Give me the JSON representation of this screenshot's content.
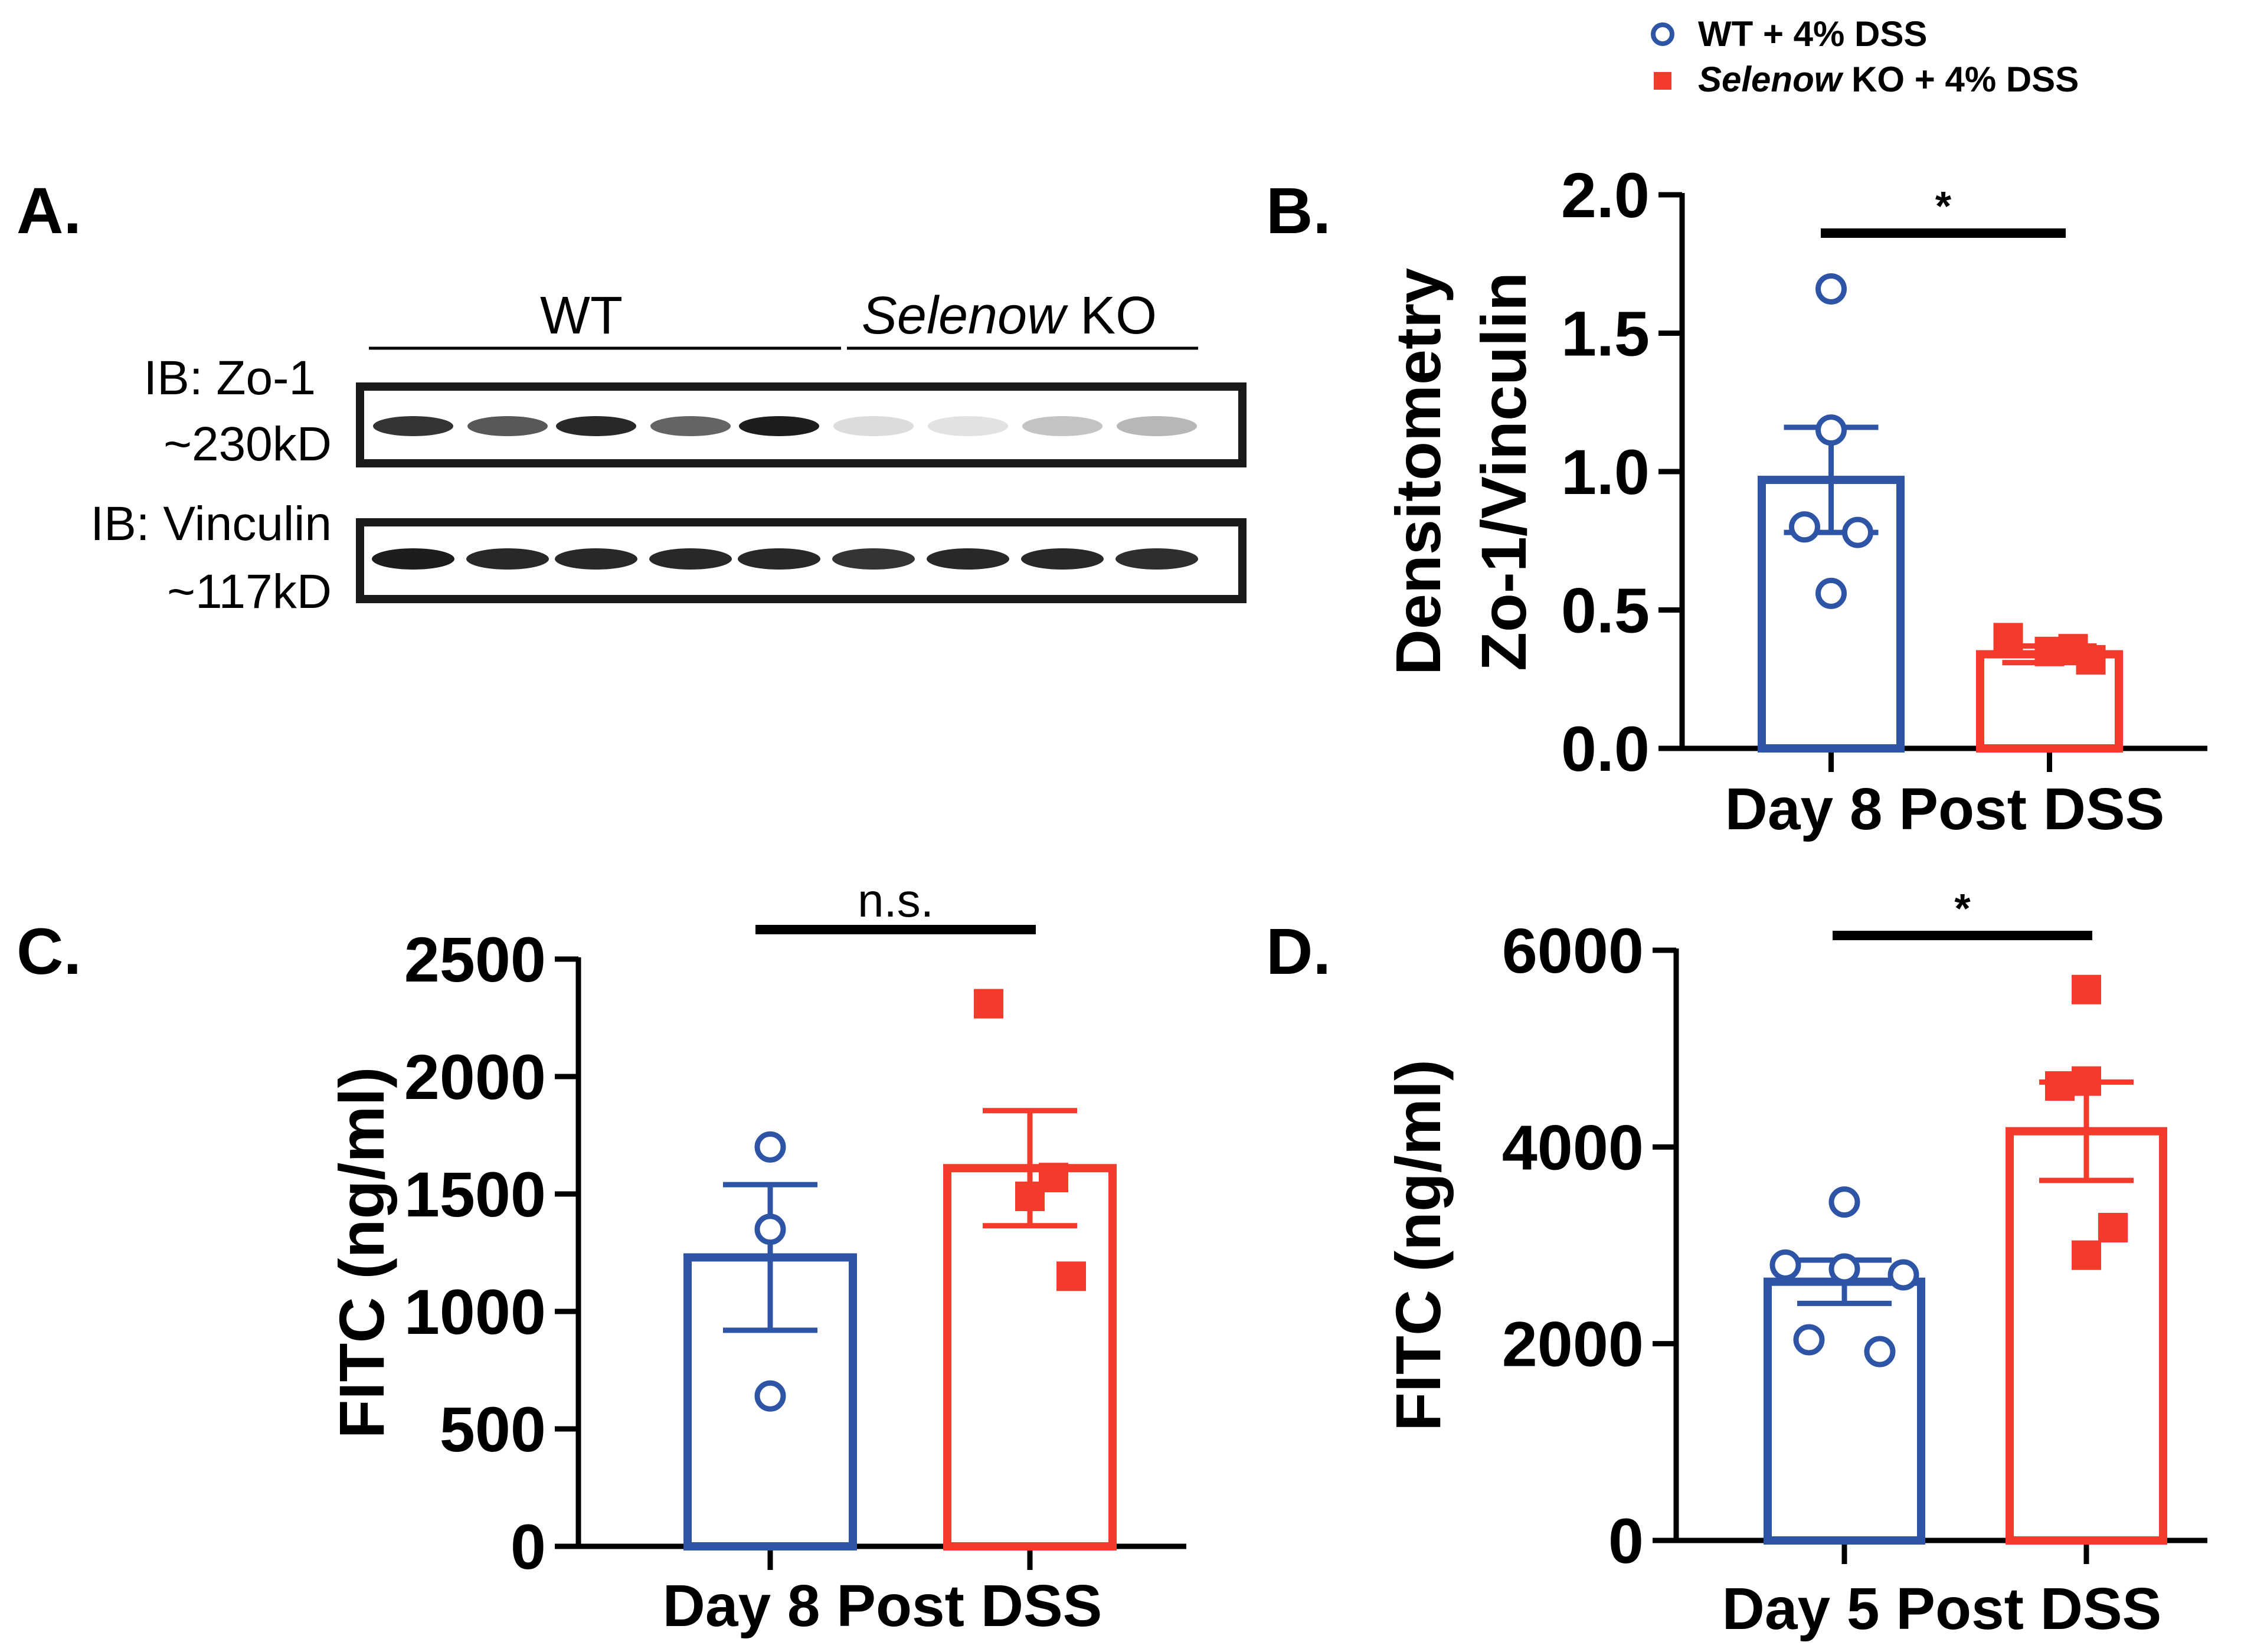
{
  "legend": {
    "items": [
      {
        "label_main": "WT + 4% DSS",
        "label_italic": "",
        "color": "#2E55A5",
        "marker": "open-circle"
      },
      {
        "label_main": " KO + 4% DSS",
        "label_italic": "Selenow",
        "color": "#F43A2A",
        "marker": "filled-square"
      }
    ],
    "position": "top-right"
  },
  "blot": {
    "panel_label": "A.",
    "group_wt": "WT",
    "group_ko_italic": "Selenow",
    "group_ko_rest": " KO",
    "zo1_label": "IB: Zo-1",
    "zo1_kd": "~230kD",
    "vinc_label": "IB: Vinculin",
    "vinc_kd": "~117kD",
    "lanes_wt": 5,
    "lanes_ko": 4
  },
  "chart_data": [
    {
      "panel": "B.",
      "type": "bar",
      "title": "",
      "xlabel": "Day 8 Post DSS",
      "ylabel_line1": "Densitometry",
      "ylabel_line2": "Zo-1/Vinculin",
      "ylim": [
        0,
        2.0
      ],
      "yticks": [
        0.0,
        0.5,
        1.0,
        1.5,
        2.0
      ],
      "ytick_labels": [
        "0.0",
        "0.5",
        "1.0",
        "1.5",
        "2.0"
      ],
      "series": [
        {
          "name": "WT + 4% DSS",
          "mean": 0.97,
          "sem": 0.19,
          "points": [
            1.66,
            1.15,
            0.8,
            0.78,
            0.56
          ],
          "color": "#2E55A5",
          "marker": "open-circle"
        },
        {
          "name": "Selenow KO + 4% DSS",
          "mean": 0.34,
          "sem": 0.03,
          "points": [
            0.4,
            0.36,
            0.35,
            0.32
          ],
          "color": "#F43A2A",
          "marker": "filled-square"
        }
      ],
      "significance": "*"
    },
    {
      "panel": "C.",
      "type": "bar",
      "title": "",
      "xlabel": "Day 8 Post DSS",
      "ylabel_line1": "FITC  (ng/ml)",
      "ylabel_line2": "",
      "ylim": [
        0,
        2500
      ],
      "yticks": [
        0,
        500,
        1000,
        1500,
        2000,
        2500
      ],
      "ytick_labels": [
        "0",
        "500",
        "1000",
        "1500",
        "2000",
        "2500"
      ],
      "series": [
        {
          "name": "WT + 4% DSS",
          "mean": 1230,
          "sem": 310,
          "points": [
            1700,
            1350,
            640
          ],
          "color": "#2E55A5",
          "marker": "open-circle"
        },
        {
          "name": "Selenow KO + 4% DSS",
          "mean": 1610,
          "sem": 245,
          "points": [
            2310,
            1570,
            1490,
            1150
          ],
          "color": "#F43A2A",
          "marker": "filled-square"
        }
      ],
      "significance": "n.s."
    },
    {
      "panel": "D.",
      "type": "bar",
      "title": "",
      "xlabel": "Day 5 Post DSS",
      "ylabel_line1": "FITC  (ng/ml)",
      "ylabel_line2": "",
      "ylim": [
        0,
        6000
      ],
      "yticks": [
        0,
        2000,
        4000,
        6000
      ],
      "ytick_labels": [
        "0",
        "2000",
        "4000",
        "6000"
      ],
      "series": [
        {
          "name": "WT + 4% DSS",
          "mean": 2630,
          "sem": 220,
          "points": [
            3440,
            2800,
            2700,
            2760,
            2040,
            1920
          ],
          "color": "#2E55A5",
          "marker": "open-circle"
        },
        {
          "name": "Selenow KO + 4% DSS",
          "mean": 4160,
          "sem": 500,
          "points": [
            5600,
            4670,
            4620,
            3180,
            2900
          ],
          "color": "#F43A2A",
          "marker": "filled-square"
        }
      ],
      "significance": "*"
    }
  ]
}
